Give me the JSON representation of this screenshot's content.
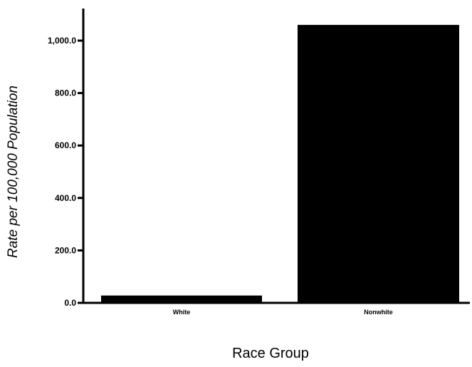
{
  "chart_data": {
    "type": "bar",
    "categories": [
      "White",
      "Nonwhite"
    ],
    "series": [
      {
        "values": [
          28.0,
          1060.0
        ]
      }
    ],
    "title": "",
    "xlabel": "Race Group",
    "ylabel": "Rate per 100,000 Population",
    "ylim": [
      0,
      1150
    ],
    "y_ticks": [
      0,
      200,
      400,
      600,
      800,
      1000
    ],
    "y_tick_labels": [
      "0.0",
      "200.0",
      "400.0",
      "600.0",
      "800.0",
      "1,000.0"
    ],
    "grid": false,
    "legend": "none",
    "bar_color": "#000000"
  }
}
